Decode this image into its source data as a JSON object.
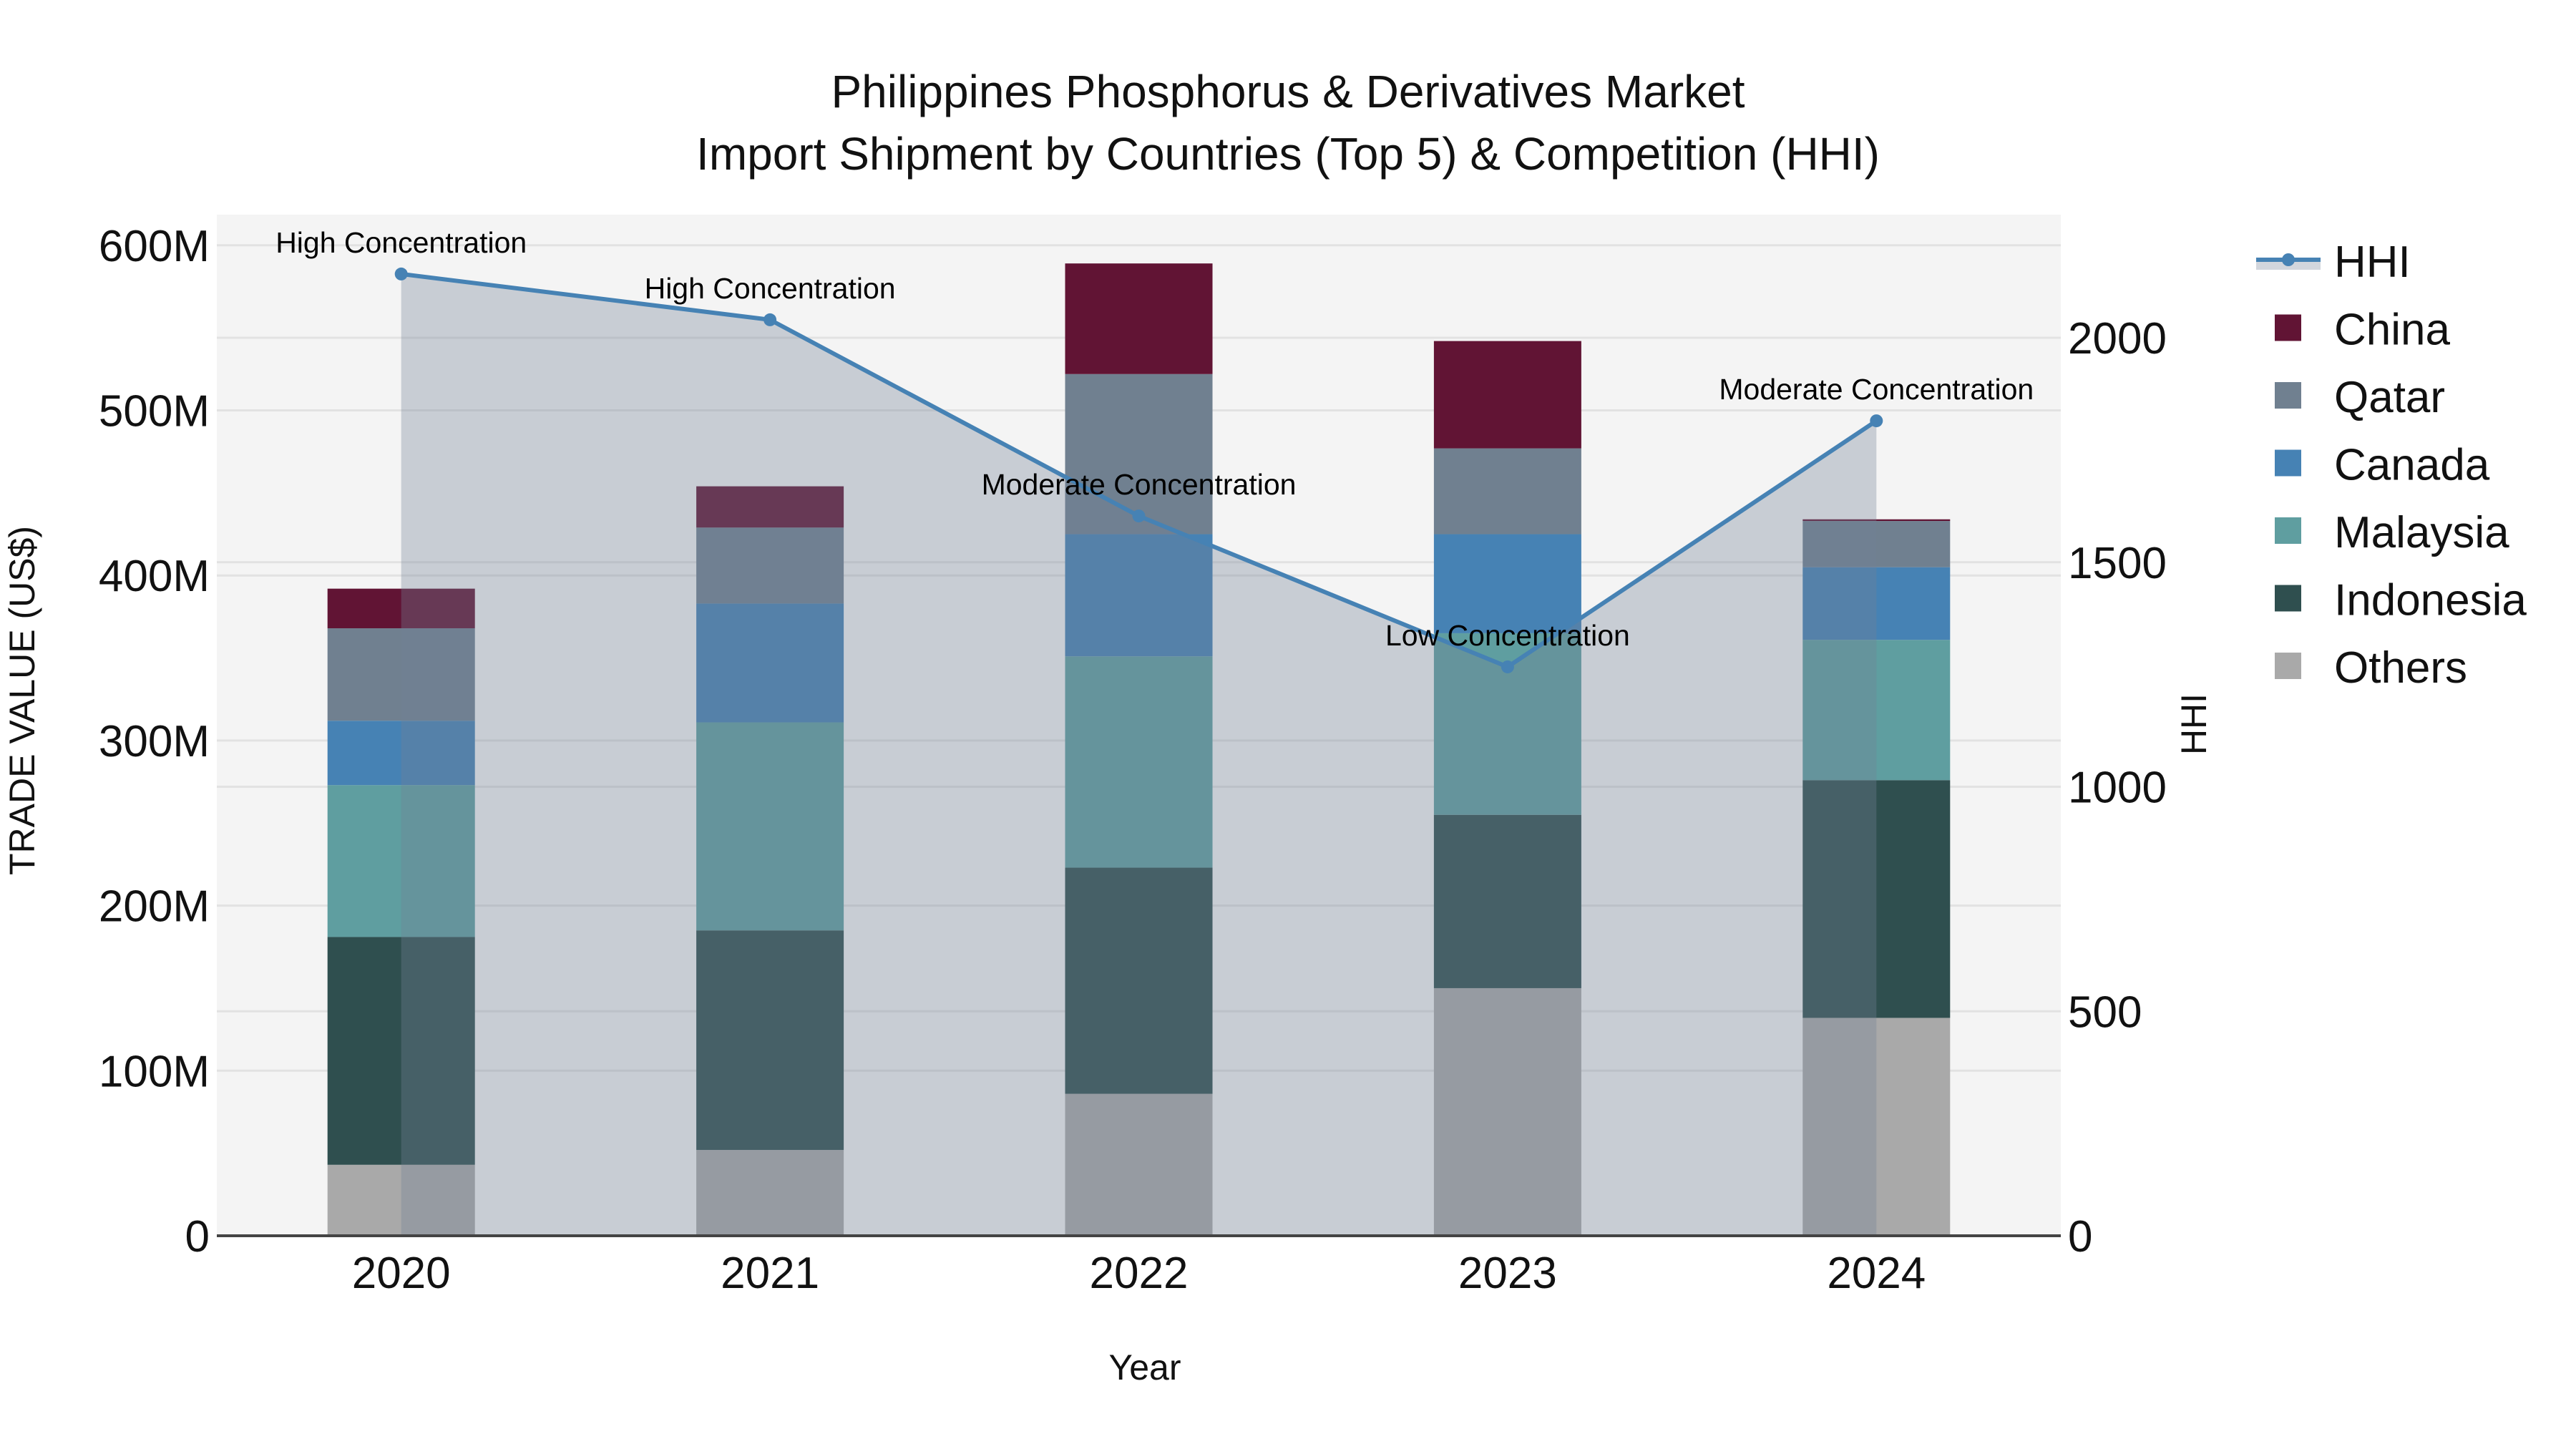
{
  "title": {
    "line1": "Philippines Phosphorus & Derivatives Market",
    "line2": "Import Shipment by Countries (Top 5) & Competition (HHI)"
  },
  "axes": {
    "x_title": "Year",
    "y_left_title": "TRADE VALUE (US$)",
    "y_right_title": "HHI",
    "y_left_ticks": [
      "0",
      "100M",
      "200M",
      "300M",
      "400M",
      "500M",
      "600M"
    ],
    "y_right_ticks": [
      "0",
      "500",
      "1000",
      "1500",
      "2000"
    ]
  },
  "legend": {
    "items": [
      {
        "label": "HHI",
        "type": "line",
        "color": "#4682b4"
      },
      {
        "label": "China",
        "type": "bar",
        "color": "#611434"
      },
      {
        "label": "Qatar",
        "type": "bar",
        "color": "#708090"
      },
      {
        "label": "Canada",
        "type": "bar",
        "color": "#4682b4"
      },
      {
        "label": "Malaysia",
        "type": "bar",
        "color": "#5f9ea0"
      },
      {
        "label": "Indonesia",
        "type": "bar",
        "color": "#2f4f4f"
      },
      {
        "label": "Others",
        "type": "bar",
        "color": "#a9a9a9"
      }
    ]
  },
  "colors": {
    "plot_bg": "#f4f4f4",
    "grid": "#e2e2e2",
    "hhi_line": "#4682b4",
    "hhi_fill": "rgba(114,128,150,0.34)"
  },
  "chart_data": {
    "type": "bar",
    "title": "Philippines Phosphorus & Derivatives Market — Import Shipment by Countries (Top 5) & Competition (HHI)",
    "xlabel": "Year",
    "ylabel": "TRADE VALUE (US$)",
    "y2label": "HHI",
    "categories": [
      "2020",
      "2021",
      "2022",
      "2023",
      "2024"
    ],
    "stacked": true,
    "ylim": [
      0,
      620000000
    ],
    "y2lim": [
      0,
      2266
    ],
    "grid": true,
    "legend_position": "right",
    "series": [
      {
        "name": "Others",
        "color": "#a9a9a9",
        "values": [
          43000000,
          52000000,
          86000000,
          150000000,
          132000000
        ]
      },
      {
        "name": "Indonesia",
        "color": "#2f4f4f",
        "values": [
          138000000,
          133000000,
          137000000,
          105000000,
          144000000
        ]
      },
      {
        "name": "Malaysia",
        "color": "#5f9ea0",
        "values": [
          92000000,
          126000000,
          128000000,
          110000000,
          85000000
        ]
      },
      {
        "name": "Canada",
        "color": "#4682b4",
        "values": [
          39000000,
          72000000,
          74000000,
          60000000,
          44000000
        ]
      },
      {
        "name": "Qatar",
        "color": "#708090",
        "values": [
          56000000,
          46000000,
          97000000,
          52000000,
          28000000
        ]
      },
      {
        "name": "China",
        "color": "#611434",
        "values": [
          24000000,
          25000000,
          67000000,
          65000000,
          1000000
        ]
      }
    ],
    "totals": [
      392000000,
      454000000,
      589000000,
      542000000,
      434000000
    ],
    "hhi": {
      "name": "HHI",
      "type": "line+area",
      "axis": "right",
      "values": [
        2142,
        2040,
        1603,
        1267,
        1815
      ],
      "annotations": [
        "High Concentration",
        "High Concentration",
        "Moderate Concentration",
        "Low Concentration",
        "Moderate Concentration"
      ]
    }
  }
}
